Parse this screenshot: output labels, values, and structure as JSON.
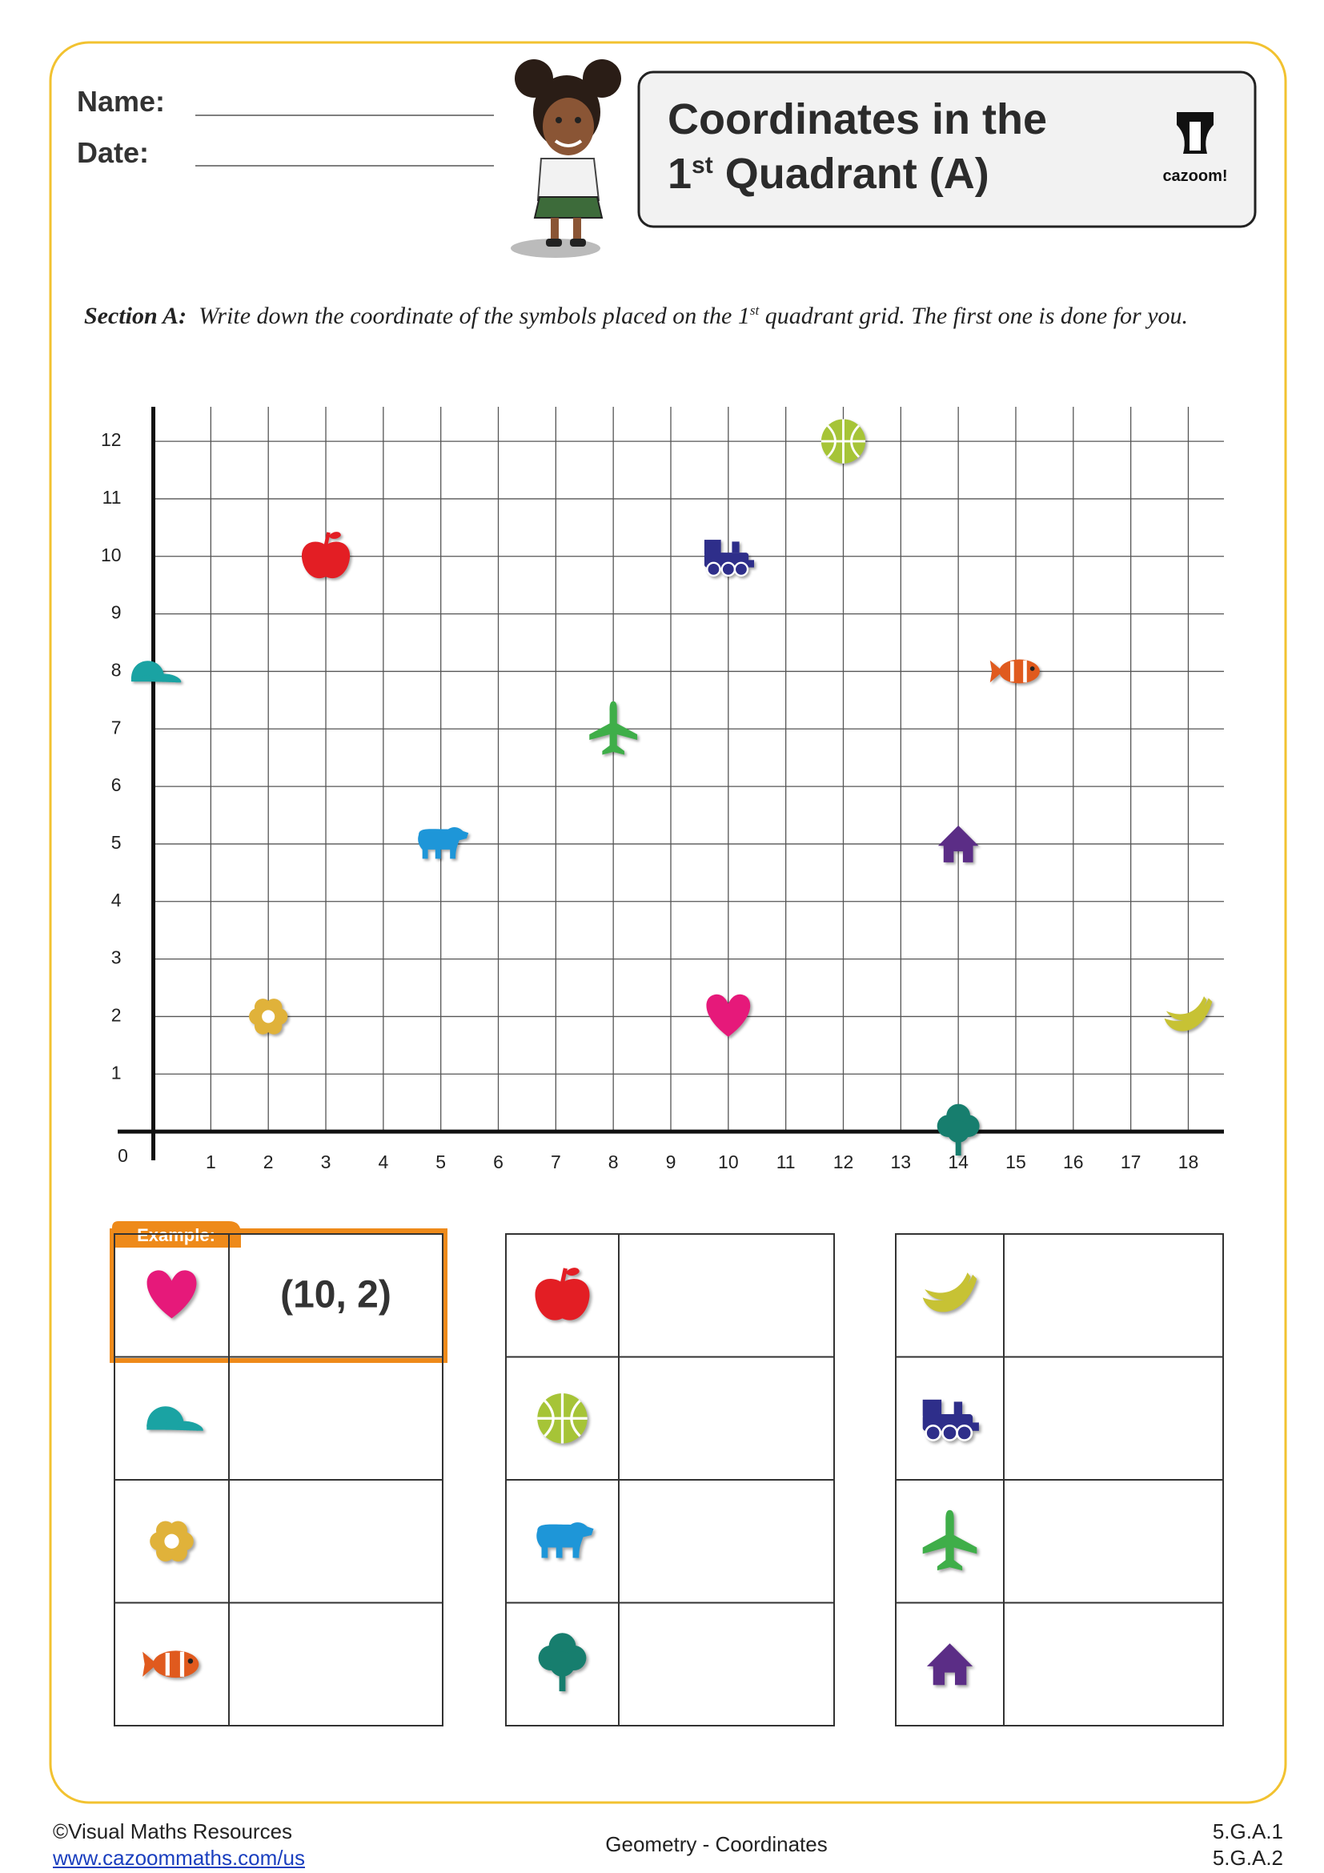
{
  "header": {
    "name_label": "Name:",
    "date_label": "Date:",
    "title_line1": "Coordinates in the",
    "title_number": "1",
    "title_suffix": "st",
    "title_rest": "Quadrant (A)",
    "logo": "cazoom!"
  },
  "instructions": {
    "section_label": "Section A:",
    "text_before": "Write down the coordinate of the symbols placed on the 1",
    "sup": "st",
    "text_after": "quadrant grid. The first one is done for you."
  },
  "chart_data": {
    "type": "scatter",
    "x": [
      10,
      3,
      12,
      10,
      0,
      15,
      8,
      5,
      14,
      2,
      18,
      14
    ],
    "values": [
      2,
      10,
      12,
      10,
      8,
      8,
      7,
      5,
      5,
      2,
      2,
      0
    ],
    "colors": [
      "#e6197a",
      "#e31e24",
      "#a6c437",
      "#2e2e8a",
      "#1aa3a3",
      "#e05a1e",
      "#3fae49",
      "#1e96d8",
      "#5b2d86",
      "#e0b23a",
      "#c7c234",
      "#177e6e"
    ],
    "xlim": [
      -0.62,
      18.62
    ],
    "ylim": [
      -0.5,
      12.6
    ],
    "xticks": [
      1,
      2,
      3,
      4,
      5,
      6,
      7,
      8,
      9,
      10,
      11,
      12,
      13,
      14,
      15,
      16,
      17,
      18
    ],
    "yticks": [
      1,
      2,
      3,
      4,
      5,
      6,
      7,
      8,
      9,
      10,
      11,
      12
    ],
    "origin": 0,
    "grid": true
  },
  "answers": {
    "example_label": "Example:",
    "example_answer": "(10, 2)"
  },
  "footer": {
    "copyright": "©Visual Maths Resources",
    "url": "www.cazoommaths.com/us",
    "subject": "Geometry - Coordinates",
    "standards": [
      "5.G.A.1",
      "5.G.A.2"
    ]
  }
}
